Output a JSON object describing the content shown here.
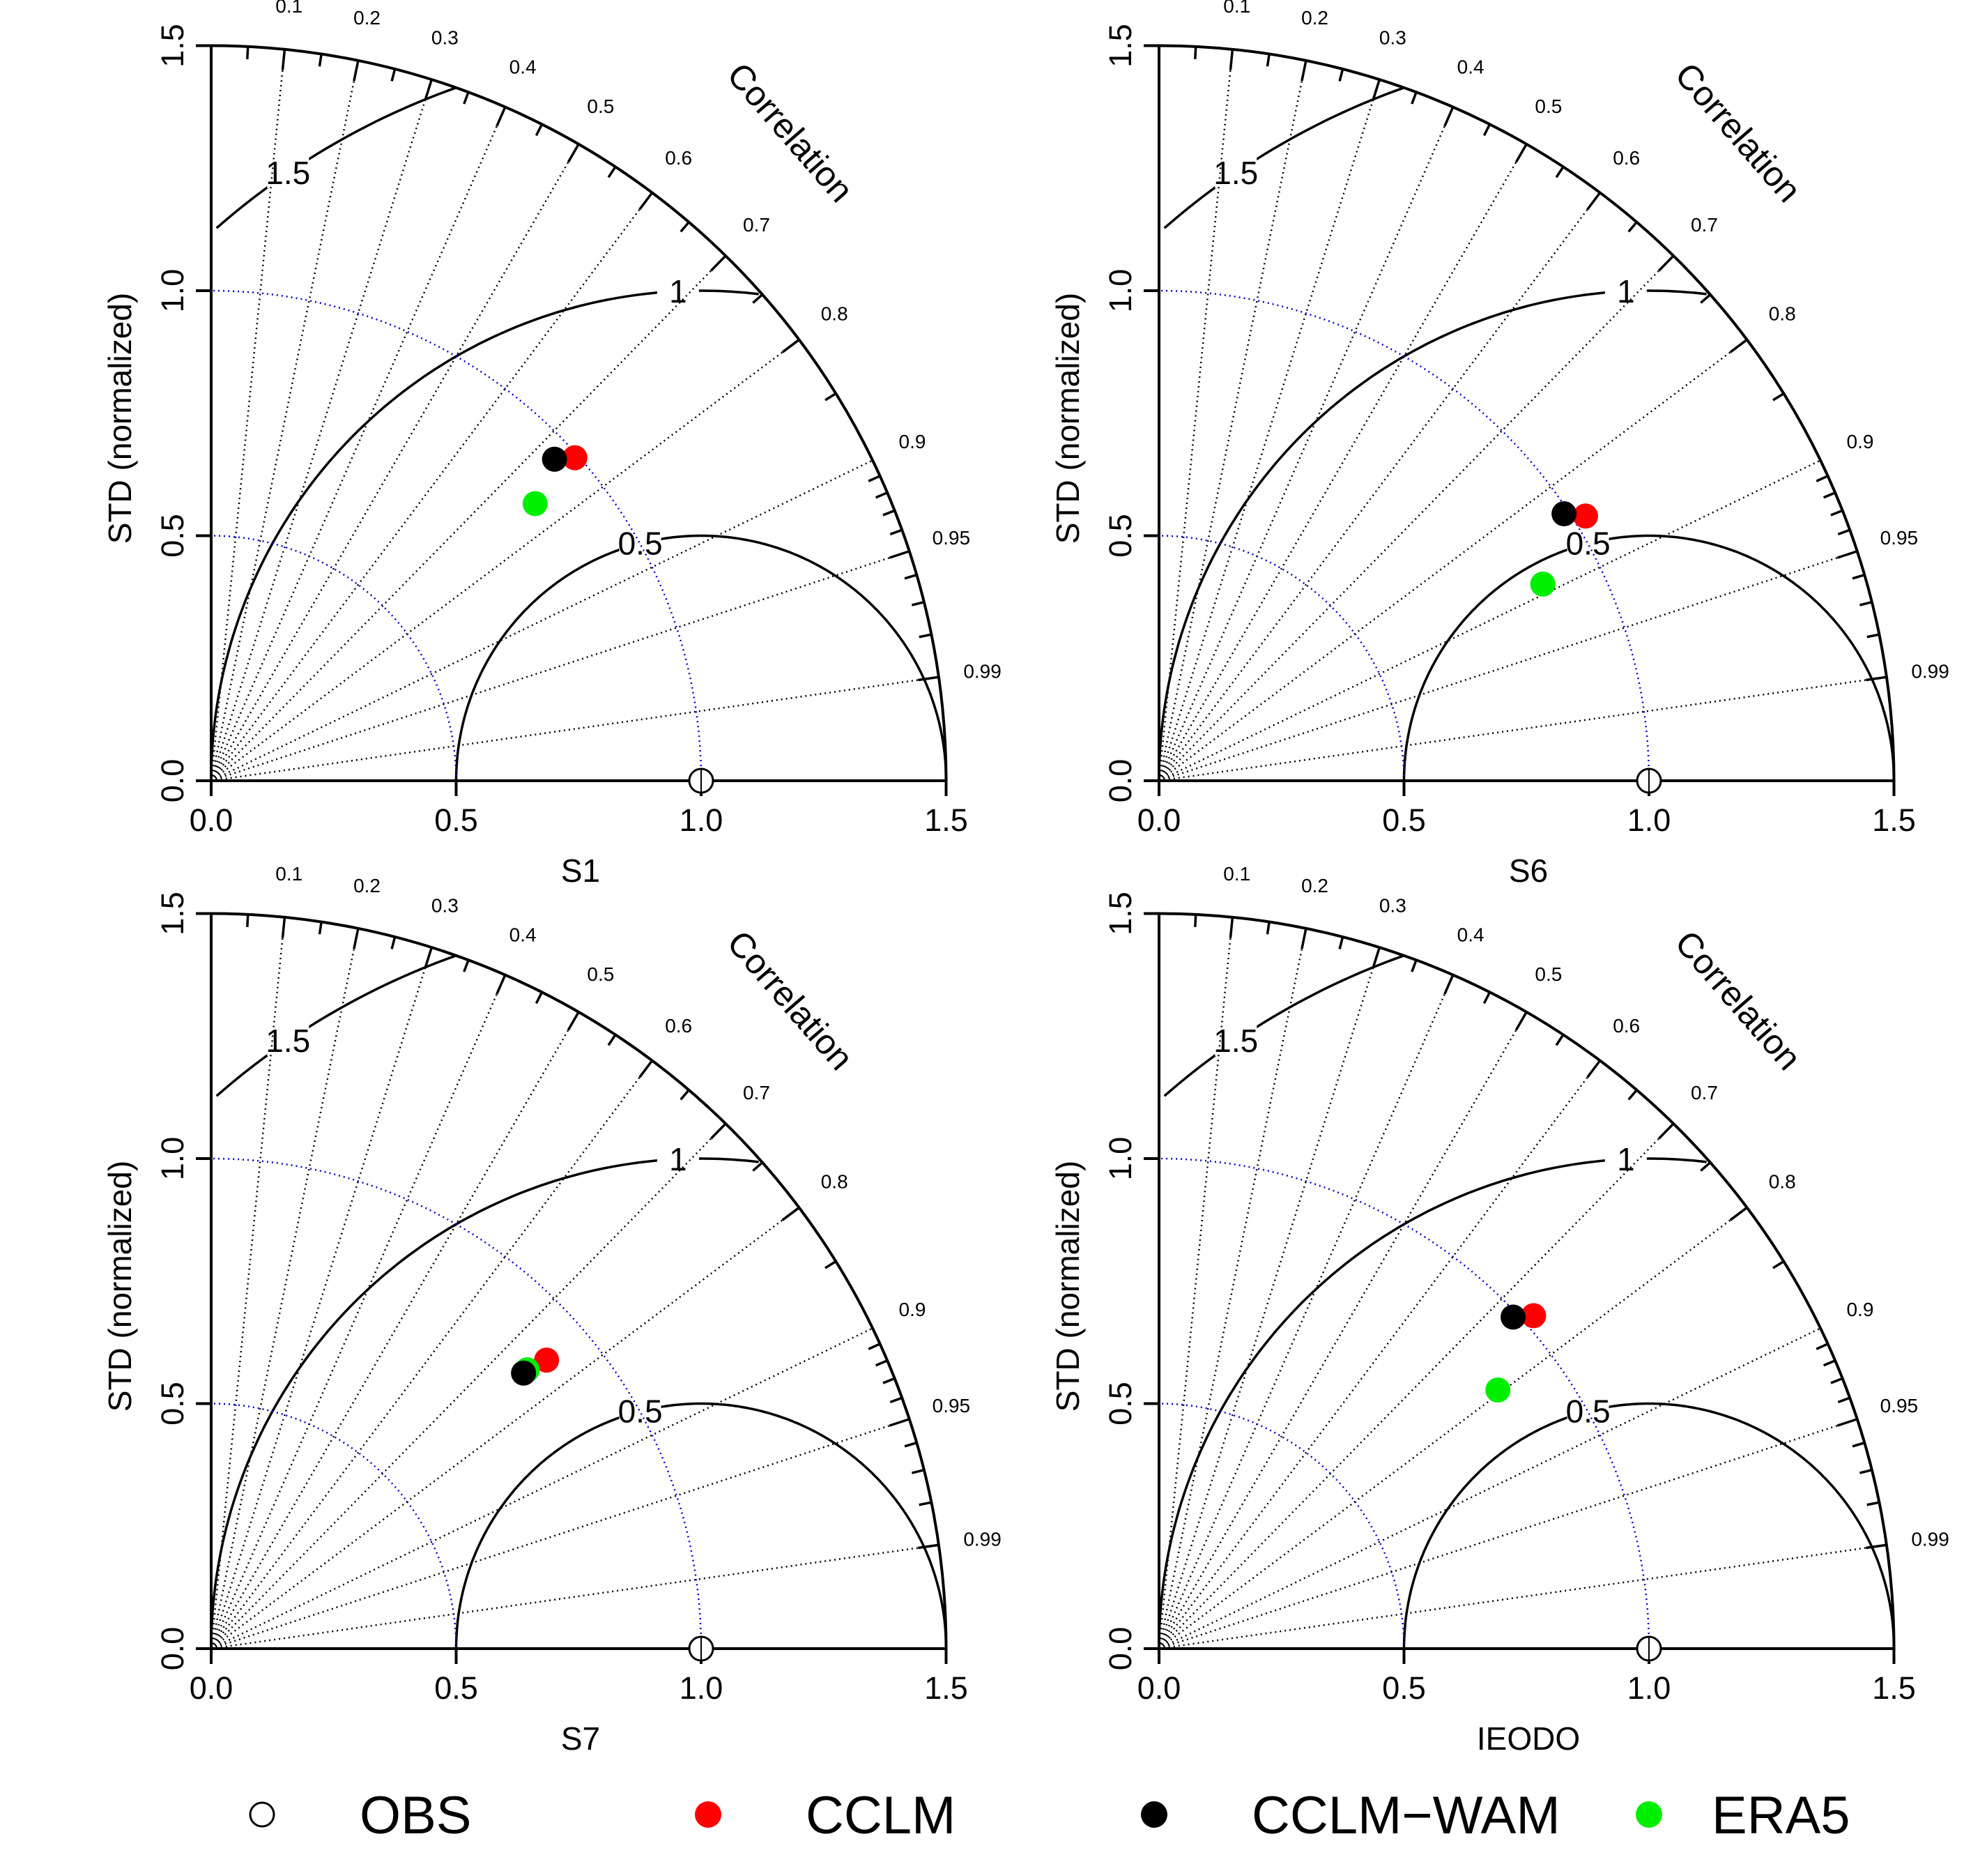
{
  "chart_data": [
    {
      "type": "taylor",
      "panel": "S1",
      "xlabel": "S1",
      "ylabel": "STD (normalized)",
      "corr_title": "Correlation",
      "std_ticks": [
        "0.0",
        "0.5",
        "1.0",
        "1.5"
      ],
      "corr_ticks": [
        "0.1",
        "0.2",
        "0.3",
        "0.4",
        "0.5",
        "0.6",
        "0.7",
        "0.8",
        "0.9",
        "0.95",
        "0.99"
      ],
      "rms_labels": [
        "0.5",
        "1",
        "1.5"
      ],
      "std_max": 1.5,
      "points": [
        {
          "name": "OBS",
          "std": 1.0,
          "corr": 1.0
        },
        {
          "name": "CCLM",
          "std": 0.98,
          "corr": 0.74
        },
        {
          "name": "CCLM-WAM",
          "std": 0.96,
          "corr": 0.73
        },
        {
          "name": "ERA5",
          "std": 0.87,
          "corr": 0.76
        }
      ]
    },
    {
      "type": "taylor",
      "panel": "S6",
      "xlabel": "S6",
      "ylabel": "STD (normalized)",
      "corr_title": "Correlation",
      "std_ticks": [
        "0.0",
        "0.5",
        "1.0",
        "1.5"
      ],
      "corr_ticks": [
        "0.1",
        "0.2",
        "0.3",
        "0.4",
        "0.5",
        "0.6",
        "0.7",
        "0.8",
        "0.9",
        "0.95",
        "0.99"
      ],
      "rms_labels": [
        "0.5",
        "1",
        "1.5"
      ],
      "std_max": 1.5,
      "points": [
        {
          "name": "OBS",
          "std": 1.0,
          "corr": 1.0
        },
        {
          "name": "CCLM",
          "std": 1.01,
          "corr": 0.845
        },
        {
          "name": "CCLM-WAM",
          "std": 0.99,
          "corr": 0.835
        },
        {
          "name": "ERA5",
          "std": 0.88,
          "corr": 0.89
        }
      ]
    },
    {
      "type": "taylor",
      "panel": "S7",
      "xlabel": "S7",
      "ylabel": "STD (normalized)",
      "corr_title": "Correlation",
      "std_ticks": [
        "0.0",
        "0.5",
        "1.0",
        "1.5"
      ],
      "corr_ticks": [
        "0.1",
        "0.2",
        "0.3",
        "0.4",
        "0.5",
        "0.6",
        "0.7",
        "0.8",
        "0.9",
        "0.95",
        "0.99"
      ],
      "rms_labels": [
        "0.5",
        "1",
        "1.5"
      ],
      "std_max": 1.5,
      "points": [
        {
          "name": "OBS",
          "std": 1.0,
          "corr": 1.0
        },
        {
          "name": "CCLM",
          "std": 0.89,
          "corr": 0.75
        },
        {
          "name": "CCLM-WAM",
          "std": 0.85,
          "corr": 0.75
        },
        {
          "name": "ERA5",
          "std": 0.86,
          "corr": 0.75
        }
      ]
    },
    {
      "type": "taylor",
      "panel": "IEODO",
      "xlabel": "IEODO",
      "ylabel": "STD (normalized)",
      "corr_title": "Correlation",
      "std_ticks": [
        "0.0",
        "0.5",
        "1.0",
        "1.5"
      ],
      "corr_ticks": [
        "0.1",
        "0.2",
        "0.3",
        "0.4",
        "0.5",
        "0.6",
        "0.7",
        "0.8",
        "0.9",
        "0.95",
        "0.99"
      ],
      "rms_labels": [
        "0.5",
        "1",
        "1.5"
      ],
      "std_max": 1.5,
      "points": [
        {
          "name": "OBS",
          "std": 1.0,
          "corr": 1.0
        },
        {
          "name": "CCLM",
          "std": 1.01,
          "corr": 0.74
        },
        {
          "name": "CCLM-WAM",
          "std": 0.99,
          "corr": 0.73
        },
        {
          "name": "ERA5",
          "std": 0.87,
          "corr": 0.795
        }
      ]
    }
  ],
  "legend": [
    {
      "label": "OBS",
      "color": "#ffffff",
      "stroke": "#000000"
    },
    {
      "label": "CCLM",
      "color": "#ff0000",
      "stroke": "#ff0000"
    },
    {
      "label": "CCLM−WAM",
      "color": "#000000",
      "stroke": "#000000"
    },
    {
      "label": "ERA5",
      "color": "#00ee00",
      "stroke": "#00ee00"
    }
  ],
  "colors": {
    "OBS": "#ffffff",
    "CCLM": "#ff0000",
    "CCLM-WAM": "#000000",
    "ERA5": "#00ee00",
    "std_ref_arc": "#0000cc"
  }
}
